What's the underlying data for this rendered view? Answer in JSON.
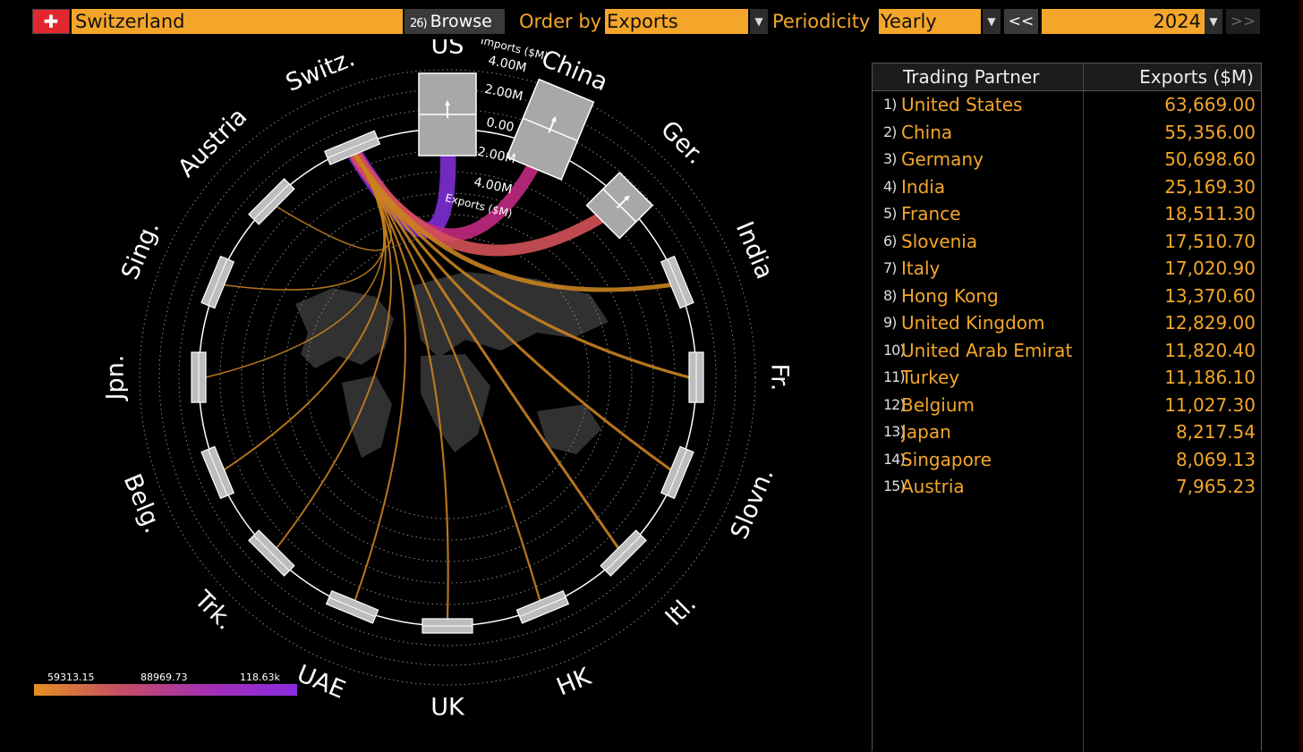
{
  "toolbar": {
    "flag_icon": "swiss-cross",
    "country": "Switzerland",
    "browse_number": "26)",
    "browse_label": "Browse",
    "order_by_label": "Order by",
    "order_by_value": "Exports",
    "periodicity_label": "Periodicity",
    "periodicity_value": "Yearly",
    "prev_label": "<<",
    "year": "2024",
    "next_label": ">>"
  },
  "chart_data": {
    "type": "chord",
    "center": "Switz.",
    "partners": [
      {
        "label": "US",
        "exports": 63669.0
      },
      {
        "label": "China",
        "exports": 55356.0
      },
      {
        "label": "Ger.",
        "exports": 50698.6
      },
      {
        "label": "India",
        "exports": 25169.3
      },
      {
        "label": "Fr.",
        "exports": 18511.3
      },
      {
        "label": "Slovn.",
        "exports": 17510.7
      },
      {
        "label": "Itl.",
        "exports": 17020.9
      },
      {
        "label": "HK",
        "exports": 13370.6
      },
      {
        "label": "UK",
        "exports": 12829.0
      },
      {
        "label": "UAE",
        "exports": 11820.4
      },
      {
        "label": "Trk.",
        "exports": 11186.1
      },
      {
        "label": "Belg.",
        "exports": 11027.3
      },
      {
        "label": "Jpn.",
        "exports": 8217.54
      },
      {
        "label": "Sing.",
        "exports": 8069.13
      },
      {
        "label": "Austria",
        "exports": 7965.23
      }
    ],
    "center_axis": {
      "top_label": "Imports ($M)",
      "bottom_label": "Exports ($M)",
      "ticks": [
        "4.00M",
        "2.00M",
        "0.00",
        "2.00M",
        "4.00M"
      ]
    },
    "color_legend": {
      "labels": [
        "59313.15",
        "88969.73",
        "118.63k"
      ],
      "colors": [
        "#e48f22",
        "#c44d66",
        "#8b2be0"
      ]
    }
  },
  "table": {
    "headers": [
      "Trading Partner",
      "Exports ($M)"
    ],
    "rows": [
      {
        "rank": "1)",
        "partner": "United States",
        "value": "63,669.00"
      },
      {
        "rank": "2)",
        "partner": "China",
        "value": "55,356.00"
      },
      {
        "rank": "3)",
        "partner": "Germany",
        "value": "50,698.60"
      },
      {
        "rank": "4)",
        "partner": "India",
        "value": "25,169.30"
      },
      {
        "rank": "5)",
        "partner": "France",
        "value": "18,511.30"
      },
      {
        "rank": "6)",
        "partner": "Slovenia",
        "value": "17,510.70"
      },
      {
        "rank": "7)",
        "partner": "Italy",
        "value": "17,020.90"
      },
      {
        "rank": "8)",
        "partner": "Hong Kong",
        "value": "13,370.60"
      },
      {
        "rank": "9)",
        "partner": "United Kingdom",
        "value": "12,829.00"
      },
      {
        "rank": "10)",
        "partner": "United Arab Emirat",
        "value": "11,820.40"
      },
      {
        "rank": "11)",
        "partner": "Turkey",
        "value": "11,186.10"
      },
      {
        "rank": "12)",
        "partner": "Belgium",
        "value": "11,027.30"
      },
      {
        "rank": "13)",
        "partner": "Japan",
        "value": "8,217.54"
      },
      {
        "rank": "14)",
        "partner": "Singapore",
        "value": "8,069.13"
      },
      {
        "rank": "15)",
        "partner": "Austria",
        "value": "7,965.23"
      }
    ]
  }
}
